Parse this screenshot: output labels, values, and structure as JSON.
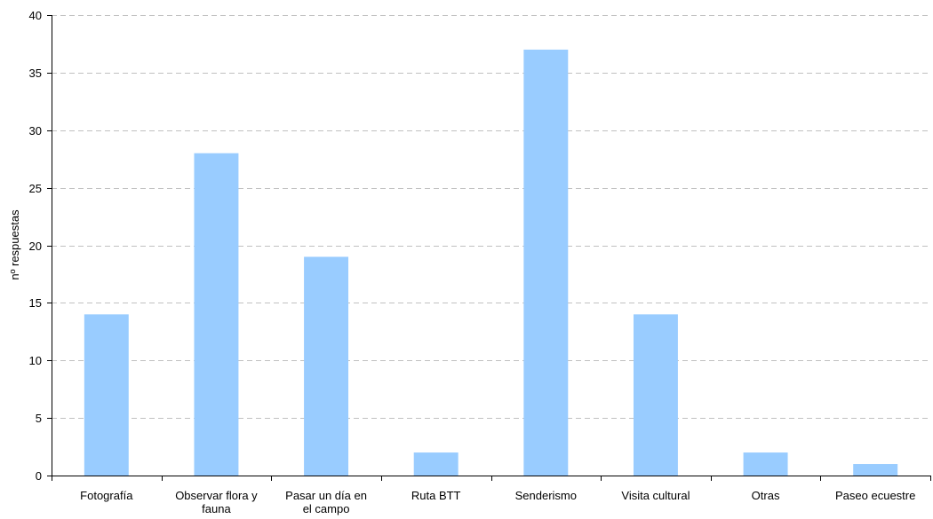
{
  "chart_data": {
    "type": "bar",
    "title": "",
    "xlabel": "",
    "ylabel": "nº respuestas",
    "ylim": [
      0,
      40
    ],
    "yticks": [
      0,
      5,
      10,
      15,
      20,
      25,
      30,
      35,
      40
    ],
    "grid": true,
    "legend": "none",
    "bar_color": "#99ccff",
    "categories": [
      [
        "Fotografía"
      ],
      [
        "Observar flora y",
        "fauna"
      ],
      [
        "Pasar un día en",
        "el campo"
      ],
      [
        "Ruta BTT"
      ],
      [
        "Senderismo"
      ],
      [
        "Visita cultural"
      ],
      [
        "Otras"
      ],
      [
        "Paseo ecuestre"
      ]
    ],
    "values": [
      14,
      28,
      19,
      2,
      37,
      14,
      2,
      1
    ]
  }
}
